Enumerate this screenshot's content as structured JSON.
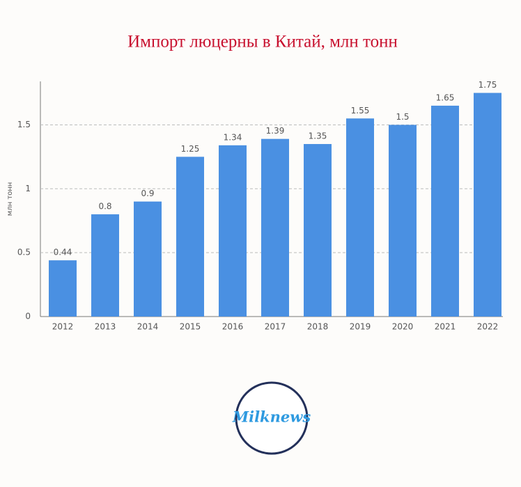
{
  "chart_data": {
    "type": "bar",
    "title": "Импорт люцерны в Китай, млн тонн",
    "y_label": "млн тонн",
    "categories": [
      "2012",
      "2013",
      "2014",
      "2015",
      "2016",
      "2017",
      "2018",
      "2019",
      "2020",
      "2021",
      "2022"
    ],
    "values": [
      0.44,
      0.8,
      0.9,
      1.25,
      1.34,
      1.39,
      1.35,
      1.55,
      1.5,
      1.65,
      1.75
    ],
    "color": "#4a90e2",
    "ylim": [
      0,
      1.84
    ],
    "yticks": [
      0,
      0.5,
      1,
      1.5
    ],
    "grid": true
  },
  "logo": "Milknews"
}
